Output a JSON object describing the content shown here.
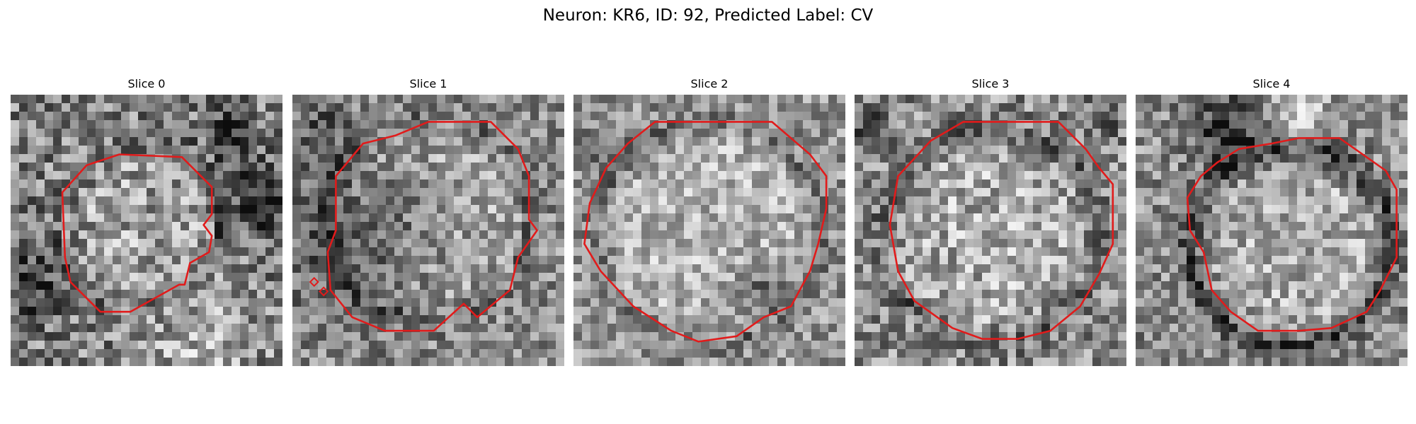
{
  "figure": {
    "title": "Neuron: KR6, ID: 92, Predicted Label: CV"
  },
  "outline_color": "#e11b1b",
  "panels": [
    {
      "title": "Slice 0",
      "seed": 11,
      "contrast": 1.35,
      "base": 0.5
    },
    {
      "title": "Slice 1",
      "seed": 23,
      "contrast": 1.1,
      "base": 0.55
    },
    {
      "title": "Slice 2",
      "seed": 37,
      "contrast": 1.05,
      "base": 0.58
    },
    {
      "title": "Slice 3",
      "seed": 41,
      "contrast": 1.25,
      "base": 0.55
    },
    {
      "title": "Slice 4",
      "seed": 53,
      "contrast": 1.15,
      "base": 0.55
    }
  ]
}
